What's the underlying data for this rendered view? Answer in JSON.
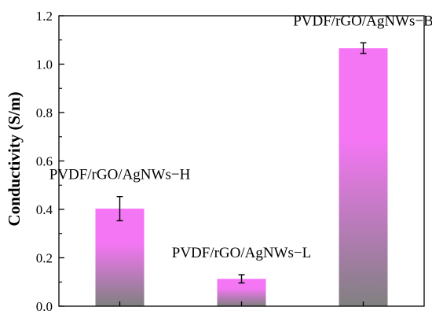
{
  "chart_data": {
    "type": "bar",
    "categories": [
      "PVDF/rGO/AgNWs−H",
      "PVDF/rGO/AgNWs−L",
      "PVDF/rGO/AgNWs−B"
    ],
    "values": [
      0.403,
      0.113,
      1.066
    ],
    "errors": [
      0.05,
      0.017,
      0.022
    ],
    "bar_labels": [
      "PVDF/rGO/AgNWs−H",
      "PVDF/rGO/AgNWs−L",
      "PVDF/rGO/AgNWs−B"
    ],
    "xlabel": "",
    "ylabel": "Conductivity (S/m)",
    "ylim": [
      0,
      1.2
    ],
    "yticks": [
      "0.0",
      "0.2",
      "0.4",
      "0.6",
      "0.8",
      "1.0",
      "1.2"
    ],
    "grid": false,
    "bar_gradient": {
      "top": "#f576f5",
      "bottom": "#808080"
    }
  }
}
